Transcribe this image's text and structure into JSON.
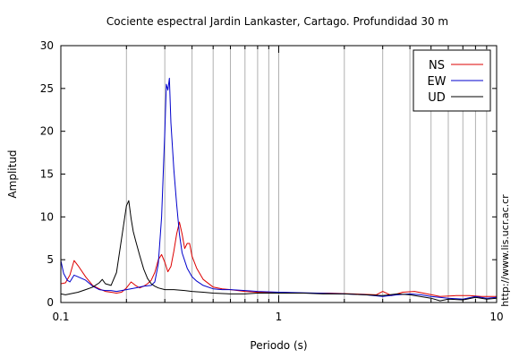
{
  "chart_data": {
    "type": "line",
    "title": "Cociente espectral Jardin Lankaster, Cartago. Profundidad 30 m",
    "xlabel": "Periodo (s)",
    "ylabel": "Amplitud",
    "xscale": "log",
    "xlim": [
      0.1,
      10
    ],
    "ylim": [
      0,
      30
    ],
    "x_ticks": [
      {
        "value": 0.1,
        "label": "0.1"
      },
      {
        "value": 1,
        "label": "1"
      },
      {
        "value": 10,
        "label": "10"
      }
    ],
    "y_ticks": [
      {
        "value": 0,
        "label": "0"
      },
      {
        "value": 5,
        "label": "5"
      },
      {
        "value": 10,
        "label": "10"
      },
      {
        "value": 15,
        "label": "15"
      },
      {
        "value": 20,
        "label": "20"
      },
      {
        "value": 25,
        "label": "25"
      },
      {
        "value": 30,
        "label": "30"
      }
    ],
    "grid": {
      "x_minor": true,
      "y": false
    },
    "legend": "top-right",
    "series": [
      {
        "name": "NS",
        "color": "#dd0000",
        "points": [
          [
            0.1,
            2.2
          ],
          [
            0.105,
            2.3
          ],
          [
            0.11,
            3.2
          ],
          [
            0.115,
            4.9
          ],
          [
            0.12,
            4.3
          ],
          [
            0.13,
            3.0
          ],
          [
            0.14,
            2.0
          ],
          [
            0.15,
            1.6
          ],
          [
            0.16,
            1.3
          ],
          [
            0.17,
            1.2
          ],
          [
            0.18,
            1.1
          ],
          [
            0.19,
            1.2
          ],
          [
            0.2,
            1.7
          ],
          [
            0.21,
            2.4
          ],
          [
            0.22,
            2.0
          ],
          [
            0.23,
            1.7
          ],
          [
            0.24,
            1.9
          ],
          [
            0.25,
            2.2
          ],
          [
            0.26,
            2.6
          ],
          [
            0.27,
            3.5
          ],
          [
            0.28,
            5.0
          ],
          [
            0.29,
            5.6
          ],
          [
            0.3,
            4.7
          ],
          [
            0.31,
            3.6
          ],
          [
            0.32,
            4.2
          ],
          [
            0.33,
            6.0
          ],
          [
            0.34,
            8.0
          ],
          [
            0.35,
            9.4
          ],
          [
            0.36,
            8.0
          ],
          [
            0.37,
            6.3
          ],
          [
            0.38,
            6.9
          ],
          [
            0.39,
            6.9
          ],
          [
            0.4,
            5.4
          ],
          [
            0.42,
            4.0
          ],
          [
            0.45,
            2.7
          ],
          [
            0.5,
            1.8
          ],
          [
            0.55,
            1.6
          ],
          [
            0.6,
            1.5
          ],
          [
            0.7,
            1.3
          ],
          [
            0.8,
            1.2
          ],
          [
            1.0,
            1.2
          ],
          [
            1.3,
            1.1
          ],
          [
            1.7,
            1.1
          ],
          [
            2.2,
            1.0
          ],
          [
            2.8,
            0.9
          ],
          [
            3.0,
            1.3
          ],
          [
            3.3,
            0.8
          ],
          [
            3.7,
            1.2
          ],
          [
            4.2,
            1.3
          ],
          [
            4.8,
            1.0
          ],
          [
            5.5,
            0.7
          ],
          [
            6.5,
            0.8
          ],
          [
            7.5,
            0.8
          ],
          [
            8.5,
            0.7
          ],
          [
            10,
            0.7
          ]
        ]
      },
      {
        "name": "EW",
        "color": "#0000cc",
        "points": [
          [
            0.1,
            4.9
          ],
          [
            0.103,
            3.4
          ],
          [
            0.107,
            2.6
          ],
          [
            0.11,
            2.4
          ],
          [
            0.115,
            3.2
          ],
          [
            0.12,
            3.0
          ],
          [
            0.13,
            2.6
          ],
          [
            0.14,
            1.9
          ],
          [
            0.15,
            1.5
          ],
          [
            0.16,
            1.4
          ],
          [
            0.17,
            1.4
          ],
          [
            0.18,
            1.3
          ],
          [
            0.19,
            1.4
          ],
          [
            0.2,
            1.5
          ],
          [
            0.22,
            1.7
          ],
          [
            0.24,
            1.9
          ],
          [
            0.26,
            2.0
          ],
          [
            0.27,
            2.4
          ],
          [
            0.28,
            4.5
          ],
          [
            0.29,
            10.0
          ],
          [
            0.3,
            20.0
          ],
          [
            0.305,
            25.5
          ],
          [
            0.31,
            24.8
          ],
          [
            0.315,
            26.2
          ],
          [
            0.32,
            21.0
          ],
          [
            0.33,
            15.5
          ],
          [
            0.34,
            11.5
          ],
          [
            0.35,
            8.0
          ],
          [
            0.36,
            5.8
          ],
          [
            0.38,
            4.0
          ],
          [
            0.4,
            3.0
          ],
          [
            0.42,
            2.5
          ],
          [
            0.45,
            2.0
          ],
          [
            0.5,
            1.6
          ],
          [
            0.55,
            1.5
          ],
          [
            0.6,
            1.5
          ],
          [
            0.7,
            1.4
          ],
          [
            0.8,
            1.3
          ],
          [
            1.0,
            1.2
          ],
          [
            1.5,
            1.1
          ],
          [
            2.0,
            1.0
          ],
          [
            2.5,
            0.9
          ],
          [
            3.0,
            0.7
          ],
          [
            3.5,
            0.9
          ],
          [
            4.0,
            1.0
          ],
          [
            4.5,
            0.9
          ],
          [
            5.0,
            0.7
          ],
          [
            6.0,
            0.5
          ],
          [
            7.0,
            0.4
          ],
          [
            8.0,
            0.7
          ],
          [
            9.0,
            0.5
          ],
          [
            10,
            0.6
          ]
        ]
      },
      {
        "name": "UD",
        "color": "#000000",
        "points": [
          [
            0.1,
            1.0
          ],
          [
            0.105,
            0.9
          ],
          [
            0.11,
            1.0
          ],
          [
            0.12,
            1.2
          ],
          [
            0.13,
            1.5
          ],
          [
            0.14,
            1.8
          ],
          [
            0.15,
            2.3
          ],
          [
            0.155,
            2.7
          ],
          [
            0.16,
            2.2
          ],
          [
            0.17,
            2.0
          ],
          [
            0.18,
            3.5
          ],
          [
            0.19,
            7.5
          ],
          [
            0.2,
            11.3
          ],
          [
            0.205,
            11.9
          ],
          [
            0.21,
            9.8
          ],
          [
            0.215,
            8.3
          ],
          [
            0.22,
            7.3
          ],
          [
            0.23,
            5.5
          ],
          [
            0.24,
            3.9
          ],
          [
            0.25,
            2.8
          ],
          [
            0.26,
            2.2
          ],
          [
            0.27,
            1.9
          ],
          [
            0.28,
            1.7
          ],
          [
            0.3,
            1.5
          ],
          [
            0.33,
            1.5
          ],
          [
            0.37,
            1.4
          ],
          [
            0.4,
            1.3
          ],
          [
            0.45,
            1.2
          ],
          [
            0.5,
            1.1
          ],
          [
            0.6,
            1.0
          ],
          [
            0.7,
            1.0
          ],
          [
            0.8,
            1.1
          ],
          [
            1.0,
            1.1
          ],
          [
            1.3,
            1.1
          ],
          [
            1.6,
            1.0
          ],
          [
            2.0,
            1.0
          ],
          [
            2.5,
            0.9
          ],
          [
            3.0,
            0.8
          ],
          [
            3.5,
            1.0
          ],
          [
            4.0,
            0.9
          ],
          [
            5.0,
            0.5
          ],
          [
            5.5,
            0.2
          ],
          [
            6.0,
            0.4
          ],
          [
            7.0,
            0.3
          ],
          [
            8.0,
            0.6
          ],
          [
            9.0,
            0.4
          ],
          [
            10,
            0.5
          ]
        ]
      }
    ]
  },
  "side_note": "http://www.lis.ucr.ac.cr"
}
